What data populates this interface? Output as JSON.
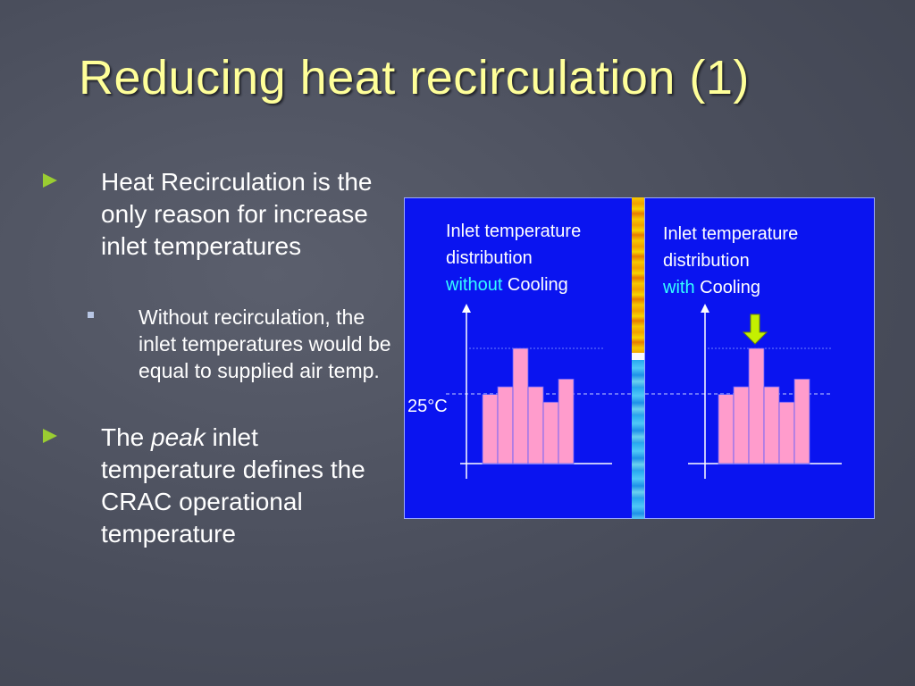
{
  "slide": {
    "title": "Reducing heat recirculation (1)"
  },
  "bullets": [
    {
      "text": "Heat Recirculation is the only reason for increase inlet temperatures",
      "sub": "Without recirculation, the inlet temperatures would be equal to supplied air temp."
    },
    {
      "prefix": "The ",
      "emphasis": "peak",
      "suffix": " inlet temperature defines the CRAC operational temperature"
    }
  ],
  "figure": {
    "left_caption": {
      "line1": "Inlet temperature",
      "line2": "distribution",
      "highlight": "without",
      "rest": " Cooling"
    },
    "right_caption": {
      "line1": "Inlet temperature",
      "line2": "distribution",
      "highlight": "with",
      "rest": " Cooling"
    },
    "reference_label": "25°C"
  },
  "chart_data": [
    {
      "type": "bar",
      "values": [
        4.5,
        5,
        7.5,
        5,
        4,
        5.5
      ],
      "color": "#ff9ccc"
    },
    {
      "type": "bar",
      "values": [
        4.5,
        5,
        7.5,
        5,
        4,
        5.5
      ],
      "color": "#ff9ccc"
    }
  ],
  "colors": {
    "title": "#ffff99",
    "bullet_arrow": "#9acd32",
    "panel": "#0a14f0",
    "highlight": "#33ffff",
    "arrow": "#c4f000"
  }
}
